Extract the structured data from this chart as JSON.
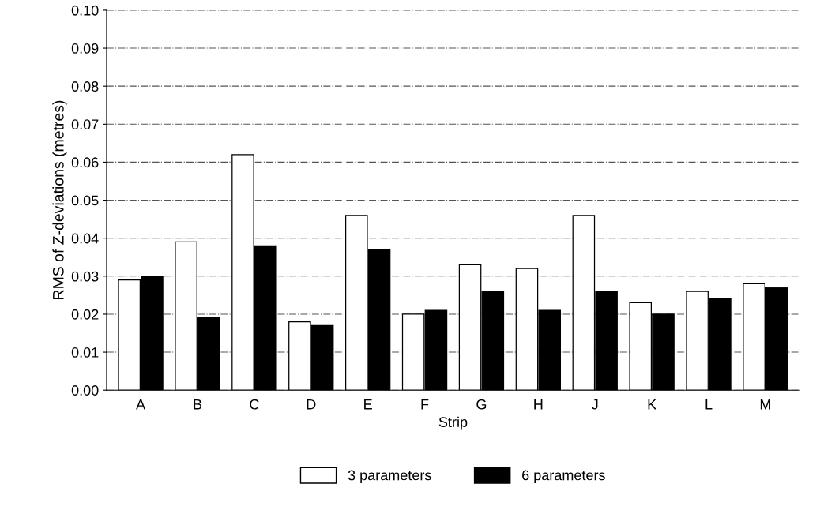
{
  "chart_data": {
    "type": "bar",
    "xlabel": "Strip",
    "ylabel": "RMS of Z-deviations (metres)",
    "categories": [
      "A",
      "B",
      "C",
      "D",
      "E",
      "F",
      "G",
      "H",
      "J",
      "K",
      "L",
      "M"
    ],
    "series": [
      {
        "name": "3 parameters",
        "color": "#ffffff",
        "values": [
          0.029,
          0.039,
          0.062,
          0.018,
          0.046,
          0.02,
          0.033,
          0.032,
          0.046,
          0.023,
          0.026,
          0.028
        ]
      },
      {
        "name": "6 parameters",
        "color": "#000000",
        "values": [
          0.03,
          0.019,
          0.038,
          0.017,
          0.037,
          0.021,
          0.026,
          0.021,
          0.026,
          0.02,
          0.024,
          0.027
        ]
      }
    ],
    "ylim": [
      0,
      0.1
    ],
    "yticks": [
      {
        "value": 0,
        "label": "0.00"
      },
      {
        "value": 0.01,
        "label": "0.01"
      },
      {
        "value": 0.02,
        "label": "0.02"
      },
      {
        "value": 0.03,
        "label": "0.03"
      },
      {
        "value": 0.04,
        "label": "0.04"
      },
      {
        "value": 0.05,
        "label": "0.05"
      },
      {
        "value": 0.06,
        "label": "0.06"
      },
      {
        "value": 0.07,
        "label": "0.07"
      },
      {
        "value": 0.08,
        "label": "0.08"
      },
      {
        "value": 0.09,
        "label": "0.09"
      },
      {
        "value": 0.1,
        "label": "0.10"
      }
    ],
    "grid": "y",
    "legend": "bottom"
  }
}
